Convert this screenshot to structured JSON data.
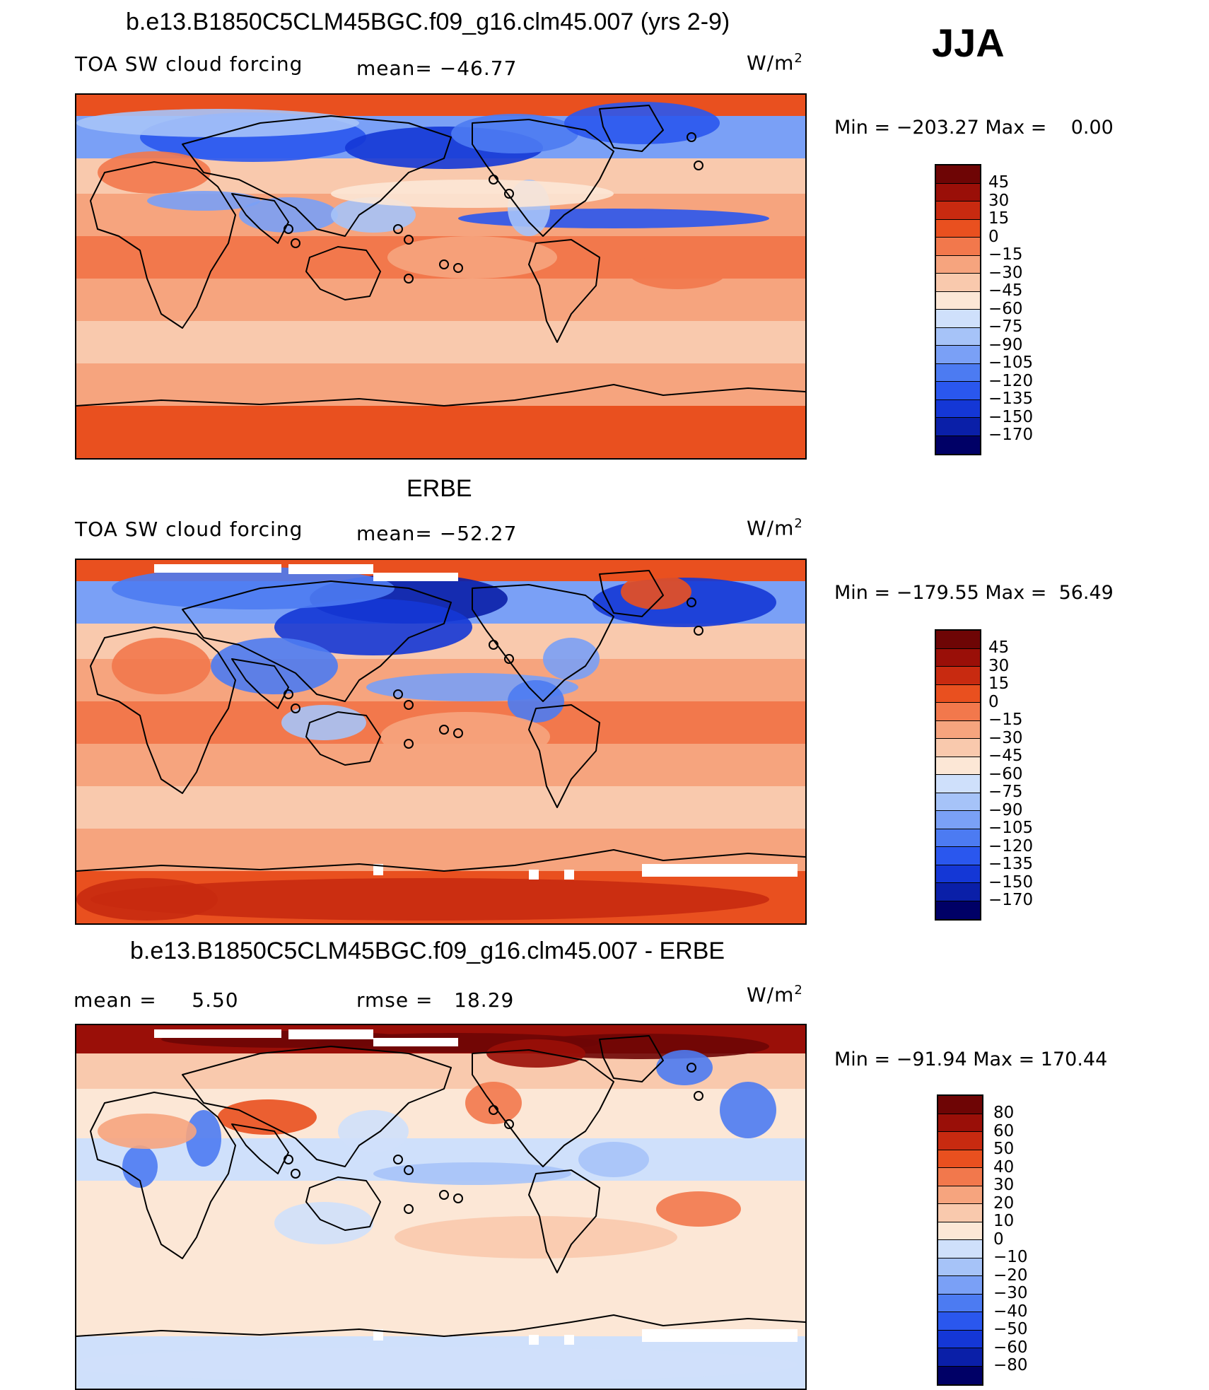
{
  "season": "JJA",
  "palette_abs": [
    "#000066",
    "#0a1fa8",
    "#1437d6",
    "#2a57ee",
    "#4c7bf2",
    "#7aa0f6",
    "#a6c3f8",
    "#cfe0fb",
    "#fce7d6",
    "#f9c9ad",
    "#f6a47e",
    "#f2784c",
    "#e9501f",
    "#c82a10",
    "#9a0f08",
    "#6e0505"
  ],
  "palette_diff": [
    "#000066",
    "#0a1fa8",
    "#1437d6",
    "#2a57ee",
    "#4c7bf2",
    "#7aa0f6",
    "#a6c3f8",
    "#cfe0fb",
    "#fce7d6",
    "#f9c9ad",
    "#f6a47e",
    "#f2784c",
    "#e9501f",
    "#c82a10",
    "#9a0f08",
    "#6e0505"
  ],
  "panels": [
    {
      "title": "b.e13.B1850C5CLM45BGC.f09_g16.clm45.007 (yrs 2-9)",
      "left_label": "TOA SW cloud forcing",
      "stat1": "mean= −46.77",
      "stat2": "",
      "units": "W/m",
      "units_exp": "2",
      "minmax": "Min = −203.27 Max =    0.00",
      "ticks": [
        "45",
        "30",
        "15",
        "0",
        "−15",
        "−30",
        "−45",
        "−60",
        "−75",
        "−90",
        "−105",
        "−120",
        "−135",
        "−150",
        "−170"
      ]
    },
    {
      "title": "ERBE",
      "left_label": "TOA SW cloud forcing",
      "stat1": "mean= −52.27",
      "stat2": "",
      "units": "W/m",
      "units_exp": "2",
      "minmax": "Min = −179.55 Max =  56.49",
      "ticks": [
        "45",
        "30",
        "15",
        "0",
        "−15",
        "−30",
        "−45",
        "−60",
        "−75",
        "−90",
        "−105",
        "−120",
        "−135",
        "−150",
        "−170"
      ]
    },
    {
      "title": "b.e13.B1850C5CLM45BGC.f09_g16.clm45.007 - ERBE",
      "left_label": "mean =     5.50",
      "stat1": "rmse =   18.29",
      "stat2": "",
      "units": "W/m",
      "units_exp": "2",
      "minmax": "Min = −91.94 Max = 170.44",
      "ticks": [
        "80",
        "60",
        "50",
        "40",
        "30",
        "20",
        "10",
        "0",
        "−10",
        "−20",
        "−30",
        "−40",
        "−50",
        "−60",
        "−80"
      ]
    }
  ]
}
